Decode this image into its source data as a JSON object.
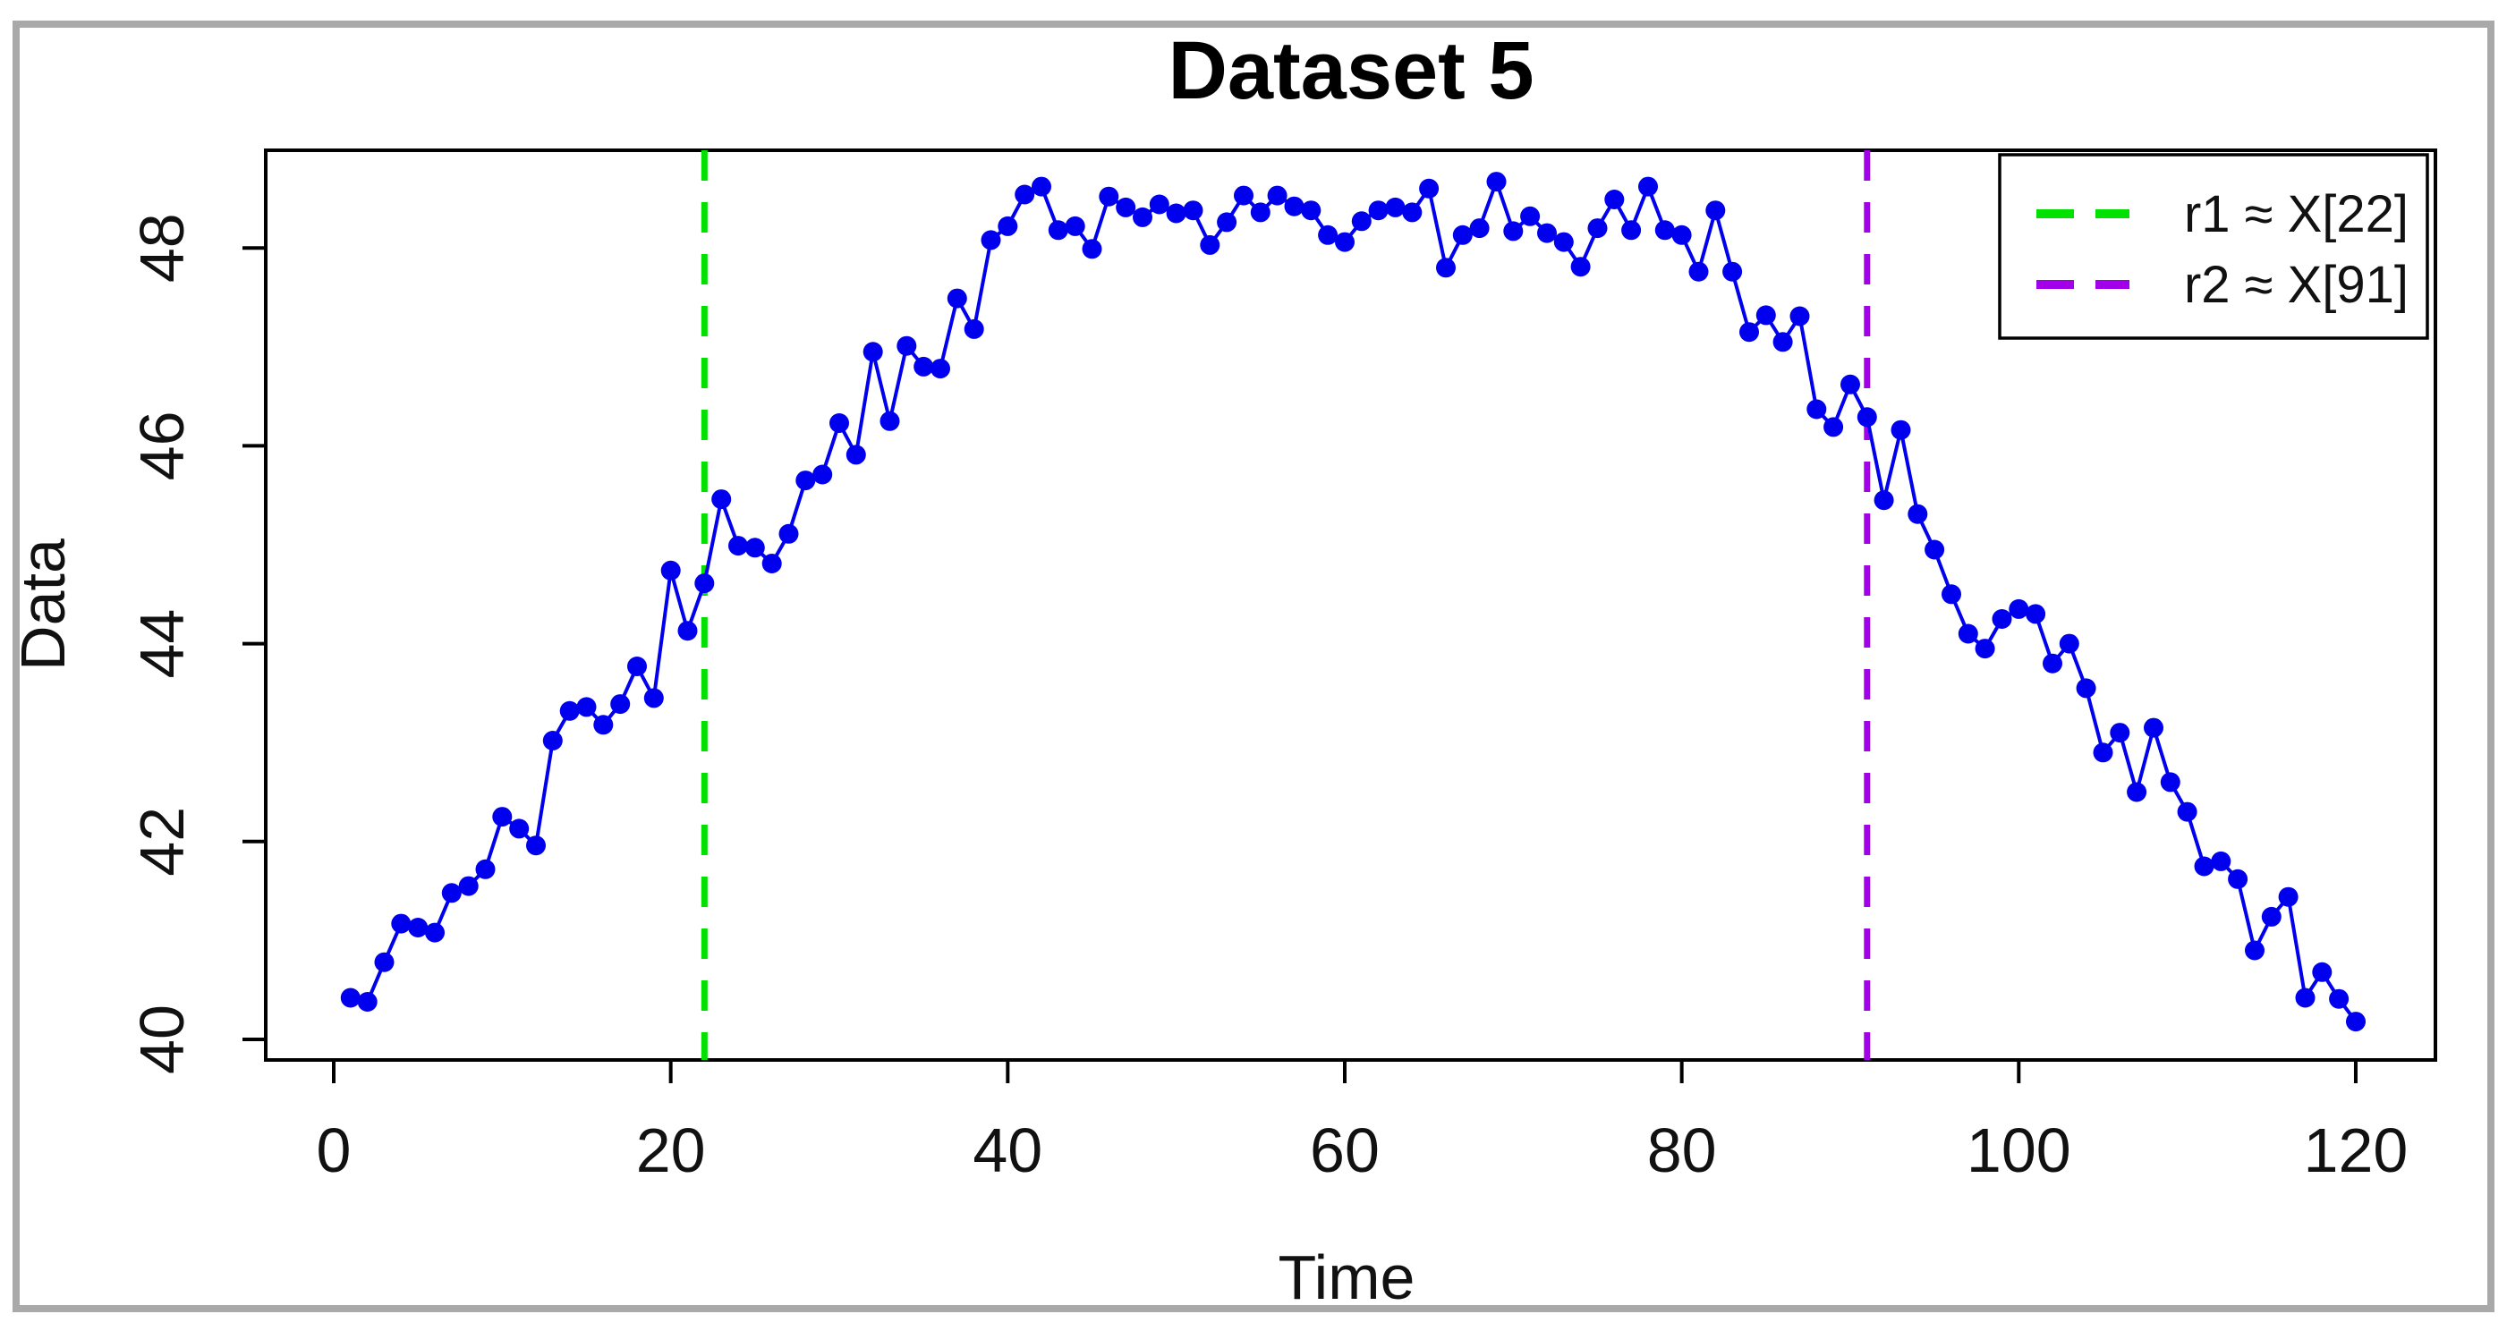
{
  "chart_data": {
    "type": "line",
    "title": "Dataset 5",
    "xlabel": "Time",
    "ylabel": "Data",
    "x_ticks": [
      0,
      20,
      40,
      60,
      80,
      100,
      120
    ],
    "y_ticks": [
      40,
      42,
      44,
      46,
      48
    ],
    "xlim": [
      -4,
      125
    ],
    "ylim": [
      39.85,
      49.0
    ],
    "grid": false,
    "legend_position": "top-right",
    "marker": "filled-circle",
    "series": [
      {
        "name": "Data",
        "color": "#0000EE",
        "x_start": 1,
        "x_step": 1,
        "values": [
          40.42,
          40.38,
          40.78,
          41.17,
          41.13,
          41.08,
          41.48,
          41.55,
          41.72,
          42.25,
          42.13,
          41.96,
          43.02,
          43.32,
          43.36,
          43.18,
          43.39,
          43.77,
          43.45,
          44.74,
          44.13,
          44.61,
          45.46,
          44.99,
          44.97,
          44.81,
          45.11,
          45.65,
          45.71,
          46.23,
          45.91,
          46.95,
          46.25,
          47.01,
          46.8,
          46.78,
          47.49,
          47.18,
          48.08,
          48.22,
          48.54,
          48.62,
          48.18,
          48.22,
          47.99,
          48.52,
          48.41,
          48.31,
          48.44,
          48.35,
          48.38,
          48.03,
          48.26,
          48.53,
          48.36,
          48.53,
          48.42,
          48.38,
          48.13,
          48.06,
          48.27,
          48.38,
          48.41,
          48.36,
          48.6,
          47.8,
          48.13,
          48.2,
          48.67,
          48.17,
          48.32,
          48.15,
          48.06,
          47.81,
          48.2,
          48.49,
          48.18,
          48.62,
          48.18,
          48.13,
          47.76,
          48.38,
          47.76,
          47.15,
          47.32,
          47.05,
          47.31,
          46.37,
          46.19,
          46.62,
          46.29,
          45.45,
          46.16,
          45.31,
          44.95,
          44.5,
          44.1,
          43.95,
          44.25,
          44.35,
          44.3,
          43.8,
          44.0,
          43.55,
          42.9,
          43.1,
          42.5,
          43.15,
          42.6,
          42.3,
          41.75,
          41.8,
          41.62,
          40.9,
          41.24,
          41.44,
          40.42,
          40.68,
          40.41,
          40.18
        ]
      }
    ],
    "vlines": [
      {
        "label": "r1 ≈ X[22]",
        "x": 22,
        "color": "#00E100",
        "style": "dashed"
      },
      {
        "label": "r2 ≈ X[91]",
        "x": 91,
        "color": "#A100E8",
        "style": "dashed"
      }
    ]
  }
}
